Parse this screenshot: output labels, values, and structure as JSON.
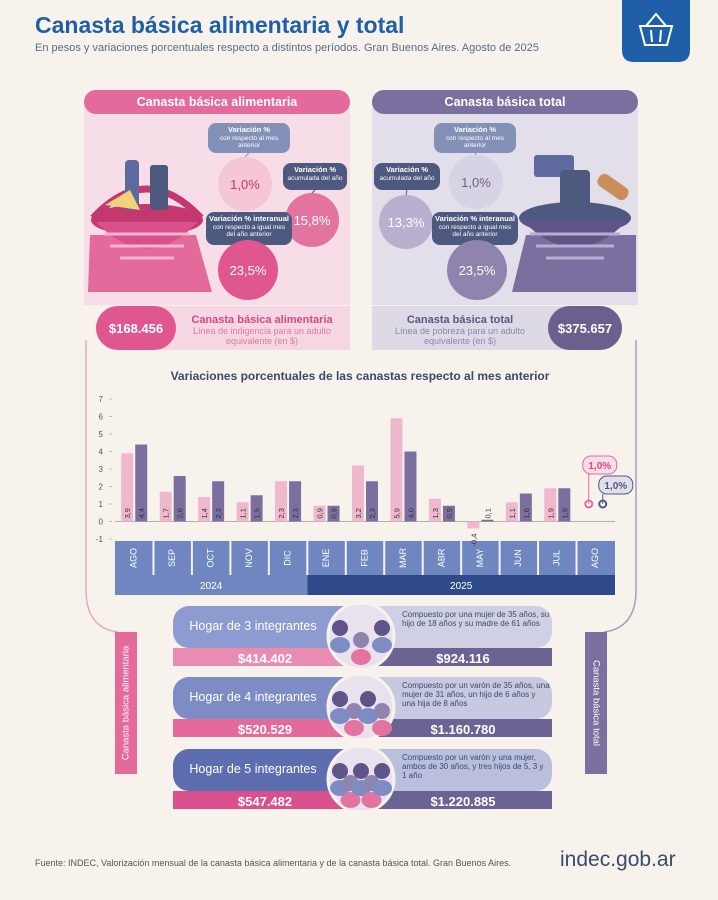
{
  "header": {
    "title": "Canasta básica alimentaria y total",
    "subtitle": "En pesos y variaciones porcentuales respecto a distintos períodos. Gran Buenos Aires. Agosto de 2025"
  },
  "cba": {
    "title": "Canasta básica alimentaria",
    "monthly": {
      "label": "Variación %",
      "sub": "con respecto al mes anterior",
      "value": "1,0%"
    },
    "accumulated": {
      "label": "Variación %",
      "sub": "acumulada del año",
      "value": "15,8%"
    },
    "interannual": {
      "label": "Variación % interanual",
      "sub": "con respecto a igual mes del año anterior",
      "value": "23,5%"
    },
    "price": "$168.456",
    "price_title": "Canasta básica alimentaria",
    "price_desc": "Línea de indigencia para un adulto equivalente (en $)"
  },
  "cbt": {
    "title": "Canasta básica total",
    "monthly": {
      "label": "Variación %",
      "sub": "con respecto al mes anterior",
      "value": "1,0%"
    },
    "accumulated": {
      "label": "Variación %",
      "sub": "acumulada del año",
      "value": "13,3%"
    },
    "interannual": {
      "label": "Variación % interanual",
      "sub": "con respecto a igual mes del año anterior",
      "value": "23,5%"
    },
    "price": "$375.657",
    "price_title": "Canasta básica total",
    "price_desc": "Línea de pobreza para un adulto equivalente (en $)"
  },
  "chart_data": {
    "type": "bar",
    "title": "Variaciones porcentuales de las canastas respecto al mes anterior",
    "categories": [
      "AGO",
      "SEP",
      "OCT",
      "NOV",
      "DIC",
      "ENE",
      "FEB",
      "MAR",
      "ABR",
      "MAY",
      "JUN",
      "JUL",
      "AGO"
    ],
    "year_groups": [
      "2024",
      "2025"
    ],
    "series": [
      {
        "color": "#f0b8cd",
        "values": [
          3.9,
          1.7,
          1.4,
          1.1,
          2.3,
          0.9,
          3.2,
          5.9,
          1.3,
          -0.4,
          1.1,
          1.9,
          1.0
        ],
        "value_labels": [
          "3,9",
          "1,7",
          "1,4",
          "1,1",
          "2,3",
          "0,9",
          "3,2",
          "5,9",
          "1,3",
          "-0,4",
          "1,1",
          "1,9",
          "1,0%"
        ]
      },
      {
        "color": "#7b6f9f",
        "values": [
          4.4,
          2.6,
          2.3,
          1.5,
          2.3,
          0.9,
          2.3,
          4.0,
          0.9,
          0.1,
          1.6,
          1.9,
          1.0
        ],
        "value_labels": [
          "4,4",
          "2,6",
          "2,3",
          "1,5",
          "2,3",
          "0,9",
          "2,3",
          "4,0",
          "0,9",
          "0,1",
          "1,6",
          "1,9",
          "1,0%"
        ]
      }
    ],
    "ylim": [
      -1,
      7
    ],
    "yticks": [
      -1,
      0,
      1,
      2,
      3,
      4,
      5,
      6,
      7
    ],
    "grid": false
  },
  "households": {
    "left_label": "Canasta básica alimentaria",
    "right_label": "Canasta básica total",
    "rows": [
      {
        "title": "Hogar de 3 integrantes",
        "desc": "Compuesto por una mujer de 35 años, su hijo de 18 años y su madre de 61 años",
        "cba": "$414.402",
        "cbt": "$924.116"
      },
      {
        "title": "Hogar de 4 integrantes",
        "desc": "Compuesto por un varón de 35 años, una mujer de 31 años, un hijo de 6 años y una hija de 8 años",
        "cba": "$520.529",
        "cbt": "$1.160.780"
      },
      {
        "title": "Hogar de 5 integrantes",
        "desc": "Compuesto por un varón y una mujer, ambos de 30 años, y tres hijos de 5, 3 y 1 año",
        "cba": "$547.482",
        "cbt": "$1.220.885"
      }
    ]
  },
  "footer": {
    "source": "Fuente: INDEC, Valorización mensual de la canasta básica alimentaria y de la canasta básica total. Gran Buenos Aires.",
    "logo": "indec.gob.ar"
  }
}
